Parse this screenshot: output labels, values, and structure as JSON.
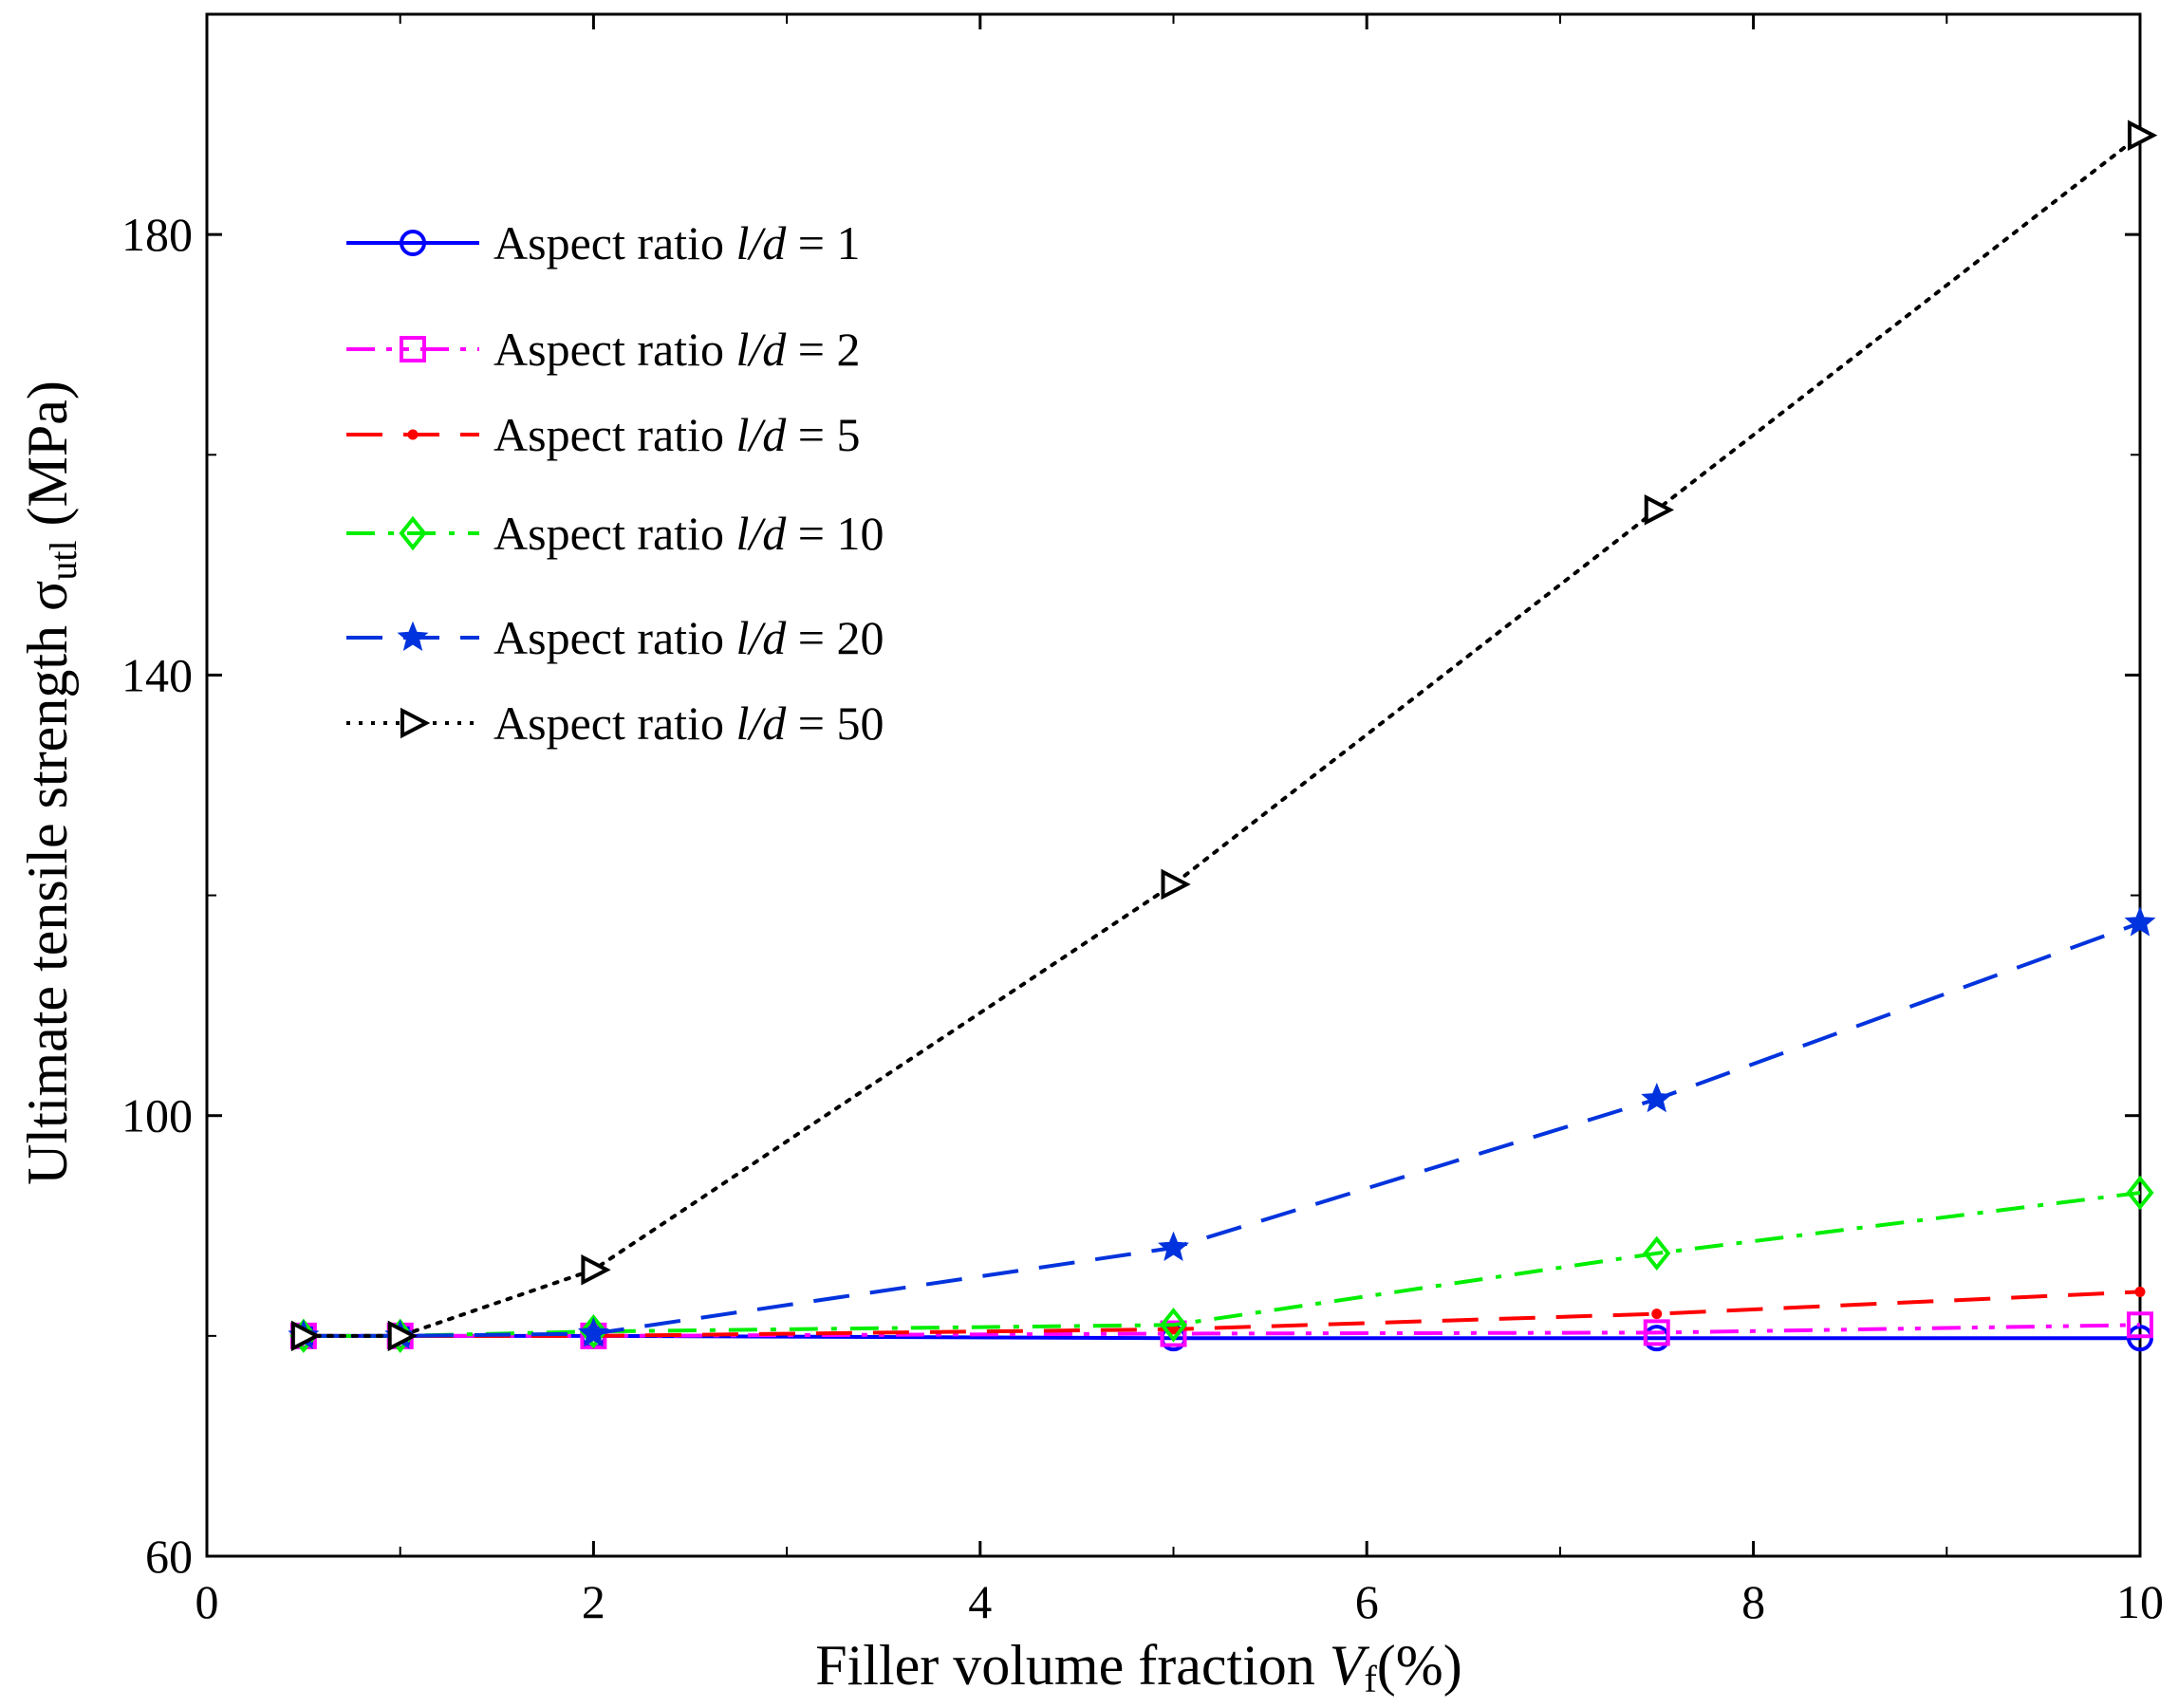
{
  "chart_data": {
    "type": "line",
    "xlabel": {
      "main": "Filler volume fraction ",
      "var": "V",
      "sub": "f",
      "unit": "(%)"
    },
    "ylabel": {
      "main": "Ultimate tensile  strength ",
      "var": "σ",
      "sub": "utl",
      "unit": " (MPa)"
    },
    "xlim": [
      0,
      10
    ],
    "ylim": [
      60,
      200
    ],
    "xticks": [
      0,
      2,
      4,
      6,
      8,
      10
    ],
    "yticks": [
      60,
      100,
      140,
      180
    ],
    "grid": false,
    "legend_position": "top-left",
    "series": [
      {
        "name": "Aspect ratio l/d = 1",
        "legend_prefix": "Aspect ratio ",
        "legend_var": "l/d",
        "legend_suffix": " = 1",
        "color": "#0000ff",
        "line_style": "solid",
        "marker": "circle",
        "x": [
          0.5,
          1,
          2,
          5,
          7.5,
          10
        ],
        "y": [
          80.0,
          80.0,
          80.0,
          79.8,
          79.8,
          79.8
        ]
      },
      {
        "name": "Aspect ratio l/d = 2",
        "legend_prefix": "Aspect ratio ",
        "legend_var": "l/d",
        "legend_suffix": " = 2",
        "color": "#ff00ff",
        "line_style": "dashdotdot",
        "marker": "square",
        "x": [
          0.5,
          1,
          2,
          5,
          7.5,
          10
        ],
        "y": [
          80.0,
          80.0,
          80.0,
          80.2,
          80.3,
          81.0
        ]
      },
      {
        "name": "Aspect ratio l/d = 5",
        "legend_prefix": "Aspect ratio ",
        "legend_var": "l/d",
        "legend_suffix": " = 5",
        "color": "#ff0000",
        "line_style": "dashed",
        "marker": "point",
        "x": [
          0.5,
          1,
          2,
          5,
          7.5,
          10
        ],
        "y": [
          80.0,
          80.0,
          80.0,
          80.6,
          82.0,
          84.0
        ]
      },
      {
        "name": "Aspect ratio l/d = 10",
        "legend_prefix": "Aspect ratio ",
        "legend_var": "l/d",
        "legend_suffix": " = 10",
        "color": "#00ee00",
        "line_style": "dashdot",
        "marker": "diamond",
        "x": [
          0.5,
          1,
          2,
          5,
          7.5,
          10
        ],
        "y": [
          80.0,
          80.0,
          80.4,
          81.0,
          87.5,
          93.0
        ]
      },
      {
        "name": "Aspect ratio l/d = 20",
        "legend_prefix": "Aspect ratio ",
        "legend_var": "l/d",
        "legend_suffix": " = 20",
        "color": "#0033dd",
        "line_style": "dashed",
        "marker": "star",
        "x": [
          0.5,
          1,
          2,
          5,
          7.5,
          10
        ],
        "y": [
          80.0,
          80.0,
          80.2,
          88.0,
          101.5,
          117.5
        ]
      },
      {
        "name": "Aspect ratio l/d = 50",
        "legend_prefix": "Aspect ratio ",
        "legend_var": "l/d",
        "legend_suffix": " = 50",
        "color": "#000000",
        "line_style": "dotted",
        "marker": "triangle-right",
        "x": [
          0.5,
          1,
          2,
          5,
          7.5,
          10
        ],
        "y": [
          80.0,
          80.0,
          86.0,
          121.0,
          155.0,
          189.0
        ]
      }
    ]
  }
}
